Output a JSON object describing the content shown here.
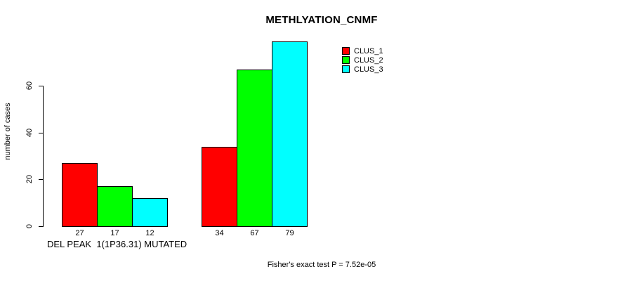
{
  "chart_data": {
    "type": "bar",
    "title": "METHLYATION_CNMF",
    "ylabel": "number of cases",
    "xlabel": "DEL PEAK  1(1P36.31) MUTATED",
    "annotation": "Fisher's exact test P = 7.52e-05",
    "ylim": [
      0,
      80
    ],
    "yticks": [
      0,
      20,
      40,
      60
    ],
    "grid": false,
    "legend_position": "top-right",
    "group_count": 2,
    "series": [
      {
        "name": "CLUS_1",
        "color": "#FF0000",
        "values": [
          27,
          34
        ]
      },
      {
        "name": "CLUS_2",
        "color": "#00FF00",
        "values": [
          17,
          67
        ]
      },
      {
        "name": "CLUS_3",
        "color": "#00FFFF",
        "values": [
          12,
          79
        ]
      }
    ],
    "bar_value_labels": [
      [
        "27",
        "17",
        "12"
      ],
      [
        "34",
        "67",
        "79"
      ]
    ]
  }
}
